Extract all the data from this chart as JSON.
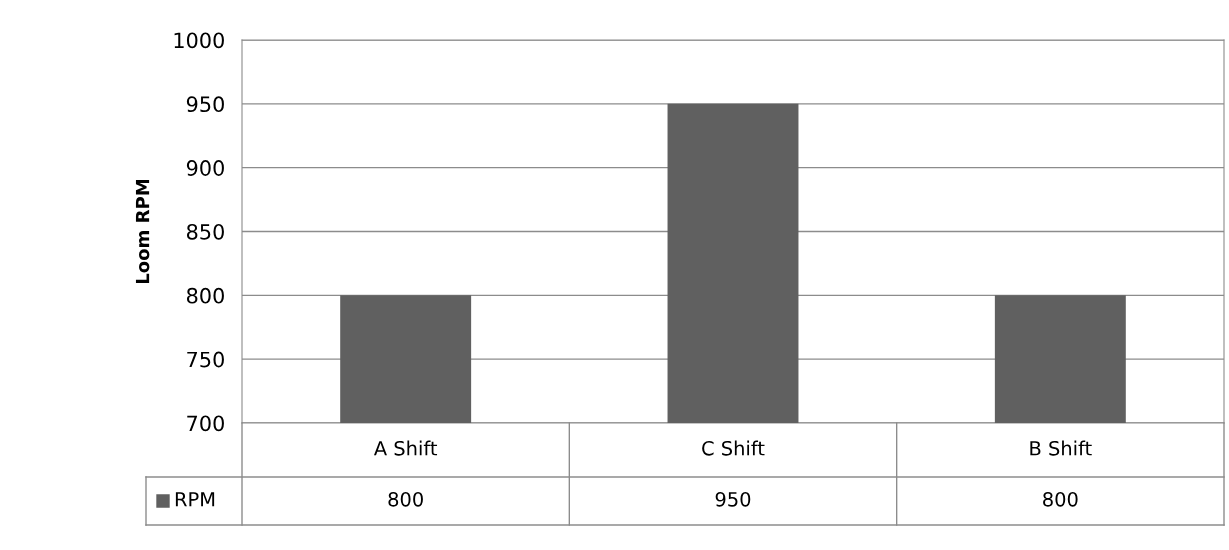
{
  "chart_data": {
    "type": "bar",
    "ylabel": "Loom RPM",
    "categories": [
      "A Shift",
      "C Shift",
      "B Shift"
    ],
    "series": [
      {
        "name": "RPM",
        "color": "#606060",
        "values": [
          800,
          950,
          800
        ]
      }
    ],
    "ylim": [
      700,
      1000
    ],
    "yticks": [
      700,
      750,
      800,
      850,
      900,
      950,
      1000
    ],
    "grid": "y",
    "data_labels": true
  }
}
